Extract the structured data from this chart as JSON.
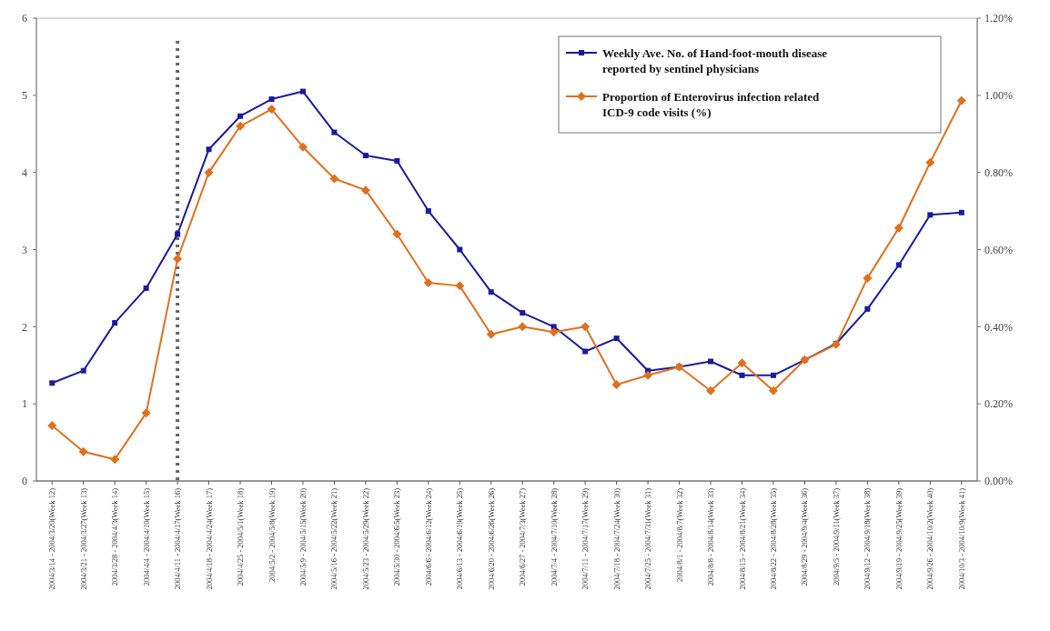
{
  "chart_data": {
    "type": "line",
    "categories": [
      "2004/3/14 - 2004/3/20(Week 12)",
      "2004/3/21 - 2004/3/27(Week 13)",
      "2004/3/28 - 2004/4/3(Week 14)",
      "2004/4/4 - 2004/4/10(Week 15)",
      "2004/4/11 - 2004/4/17(Week 16)",
      "2004/4/18 - 2004/4/24(Week 17)",
      "2004/4/25 - 2004/5/1(Week 18)",
      "2004/5/2 - 2004/5/8(Week 19)",
      "2004/5/9 - 2004/5/15(Week 20)",
      "2004/5/16 - 2004/5/22(Week 21)",
      "2004/5/23 - 2004/5/29(Week 22)",
      "2004/5/30 - 2004/6/5(Week 23)",
      "2004/6/6 - 2004/6/12(Week 24)",
      "2004/6/13 - 2004/6/19(Week 25)",
      "2004/6/20 - 2004/6/26(Week 26)",
      "2004/6/27 - 2004/7/3(Week 27)",
      "2004/7/4 - 2004/7/10(Week 28)",
      "2004/7/11 - 2004/7/17(Week 29)",
      "2004/7/18 - 2004/7/24(Week 30)",
      "2004/7/25 - 2004/7/31(Week 31)",
      "2004/8/1 - 2004/8/7(Week 32)",
      "2004/8/8 - 2004/8/14(Week 33)",
      "2004/8/15 - 2004/8/21(Week 34)",
      "2004/8/22 - 2004/8/28(Week 35)",
      "2004/8/29 - 2004/9/4(Week 36)",
      "2004/9/5 - 2004/9/11(Week 37)",
      "2004/9/12 - 2004/9/18(Week 38)",
      "2004/9/19 - 2004/9/25(Week 39)",
      "2004/9/26 - 2004/10/2(Week 40)",
      "2004/10/3 - 2004/10/9(Week 41)"
    ],
    "series": [
      {
        "name": "Weekly Ave. No. of Hand-foot-mouth disease reported by sentinel physicians",
        "color": "#1a1a9c",
        "marker": "square",
        "values": [
          1.27,
          1.43,
          2.05,
          2.5,
          3.2,
          4.3,
          4.73,
          4.95,
          5.05,
          4.52,
          4.22,
          4.15,
          3.5,
          3.0,
          2.45,
          2.18,
          2.0,
          1.68,
          1.85,
          1.43,
          1.48,
          1.55,
          1.37,
          1.37,
          1.57,
          1.78,
          2.23,
          2.8,
          3.45,
          3.48
        ]
      },
      {
        "name": "Proportion of Enterovirus infection related ICD-9 code visits (%)",
        "color": "#e0701e",
        "marker": "diamond",
        "axis": "y2",
        "values": [
          0.144,
          0.076,
          0.056,
          0.176,
          0.576,
          0.8,
          0.92,
          0.964,
          0.866,
          0.784,
          0.754,
          0.64,
          0.514,
          0.506,
          0.38,
          0.4,
          0.386,
          0.4,
          0.25,
          0.274,
          0.296,
          0.234,
          0.306,
          0.234,
          0.314,
          0.354,
          0.526,
          0.656,
          0.826,
          0.986
        ]
      }
    ],
    "ylim": [
      0,
      6
    ],
    "yticks": [
      0,
      1,
      2,
      3,
      4,
      5,
      6
    ],
    "y2lim": [
      0,
      1.2
    ],
    "y2ticks": [
      {
        "value": 0,
        "label": "0.00%"
      },
      {
        "value": 0.2,
        "label": "0.20%"
      },
      {
        "value": 0.4,
        "label": "0.40%"
      },
      {
        "value": 0.6,
        "label": "0.60%"
      },
      {
        "value": 0.8,
        "label": "0.80%"
      },
      {
        "value": 1.0,
        "label": "1.00%"
      },
      {
        "value": 1.2,
        "label": "1.20%"
      }
    ],
    "ref_lines": [
      {
        "axis": "x",
        "value": "2004/4/11 - 2004/4/17(Week 16)",
        "color": "#666666",
        "line_style": "dotted"
      }
    ],
    "legend": "top right",
    "grid": false,
    "line_style": "solid"
  }
}
